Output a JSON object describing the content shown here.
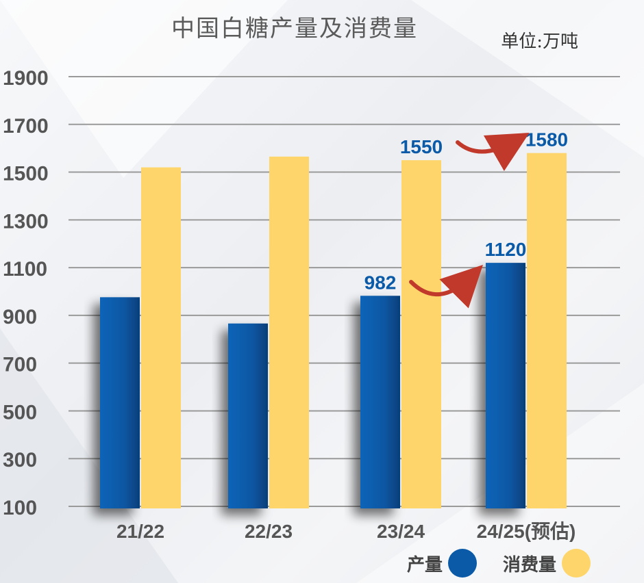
{
  "header": {
    "title": "中国白糖产量及消费量",
    "unit": "单位:万吨"
  },
  "legend": {
    "production_label": "产量",
    "consumption_label": "消费量"
  },
  "colors": {
    "production": "#0a5aa7",
    "consumption": "#fdd56b",
    "label_text": "#0a5aa7",
    "arrow": "#c0392b"
  },
  "chart_data": {
    "type": "bar",
    "title": "中国白糖产量及消费量",
    "unit": "单位:万吨",
    "categories": [
      "21/22",
      "22/23",
      "23/24",
      "24/25(预估)"
    ],
    "series": [
      {
        "name": "产量",
        "values": [
          976,
          866,
          982,
          1120
        ]
      },
      {
        "name": "消费量",
        "values": [
          1520,
          1565,
          1550,
          1580
        ]
      }
    ],
    "data_labels": [
      {
        "series": 0,
        "index": 2,
        "text": "982"
      },
      {
        "series": 0,
        "index": 3,
        "text": "1120"
      },
      {
        "series": 1,
        "index": 2,
        "text": "1550"
      },
      {
        "series": 1,
        "index": 3,
        "text": "1580"
      }
    ],
    "yticks": [
      100,
      300,
      500,
      700,
      900,
      1100,
      1300,
      1500,
      1700,
      1900
    ],
    "ylim": [
      100,
      1900
    ],
    "grid": true,
    "legend_position": "bottom-right"
  }
}
